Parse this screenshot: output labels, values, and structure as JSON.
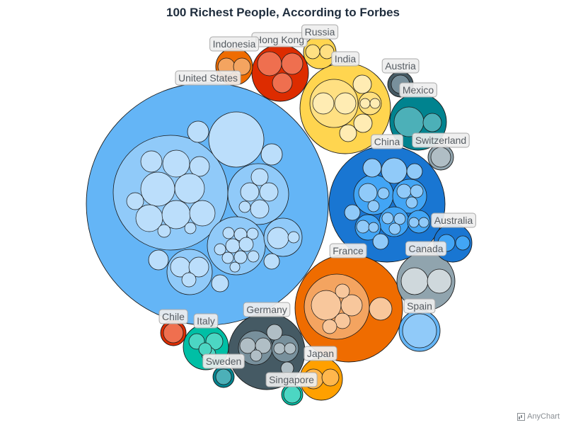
{
  "chart_data": {
    "type": "circle-packing",
    "title": "100 Richest People, According to Forbes",
    "groups": [
      {
        "name": "United States",
        "fill": "#64b5f6",
        "inner": "#90caf9",
        "leaf": "#bbdefb"
      },
      {
        "name": "China",
        "fill": "#1976d2",
        "inner": "#42a5f5",
        "leaf": "#90caf9"
      },
      {
        "name": "France",
        "fill": "#ef6c00",
        "inner": "#f4a460",
        "leaf": "#f8c79c"
      },
      {
        "name": "India",
        "fill": "#ffd54f",
        "inner": "#ffe082",
        "leaf": "#ffecb3"
      },
      {
        "name": "Canada",
        "fill": "#90a4ae",
        "inner": "#b0bec5",
        "leaf": "#cfd8dc"
      },
      {
        "name": "Germany",
        "fill": "#455a64",
        "inner": "#78909c",
        "leaf": "#b0bec5"
      },
      {
        "name": "Hong Kong",
        "fill": "#dd2c00",
        "inner": "#ef6f4f",
        "leaf": "#ef6f4f"
      },
      {
        "name": "Mexico",
        "fill": "#00838f",
        "inner": "#4cb0b8",
        "leaf": "#4cb0b8"
      },
      {
        "name": "Spain",
        "fill": "#64b5f6",
        "inner": "#90caf9",
        "leaf": "#90caf9"
      },
      {
        "name": "Italy",
        "fill": "#00bfa5",
        "inner": "#4cd6c3",
        "leaf": "#4cd6c3"
      },
      {
        "name": "Japan",
        "fill": "#ffa000",
        "inner": "#ffb74d",
        "leaf": "#ffb74d"
      },
      {
        "name": "Australia",
        "fill": "#1976d2",
        "inner": "#42a5f5",
        "leaf": "#42a5f5"
      },
      {
        "name": "Indonesia",
        "fill": "#ef6c00",
        "inner": "#f4a460",
        "leaf": "#f4a460"
      },
      {
        "name": "Russia",
        "fill": "#ffd54f",
        "inner": "#ffe082",
        "leaf": "#ffe082"
      },
      {
        "name": "Switzerland",
        "fill": "#90a4ae",
        "inner": "#b0bec5",
        "leaf": "#b0bec5"
      },
      {
        "name": "Austria",
        "fill": "#455a64",
        "inner": "#78909c",
        "leaf": "#78909c"
      },
      {
        "name": "Sweden",
        "fill": "#00838f",
        "inner": "#4cb0b8",
        "leaf": "#4cb0b8"
      },
      {
        "name": "Chile",
        "fill": "#dd2c00",
        "inner": "#ef6f4f",
        "leaf": "#ef6f4f"
      },
      {
        "name": "Singapore",
        "fill": "#00bfa5",
        "inner": "#4cd6c3",
        "leaf": "#4cd6c3"
      }
    ]
  },
  "credit": "AnyChart"
}
